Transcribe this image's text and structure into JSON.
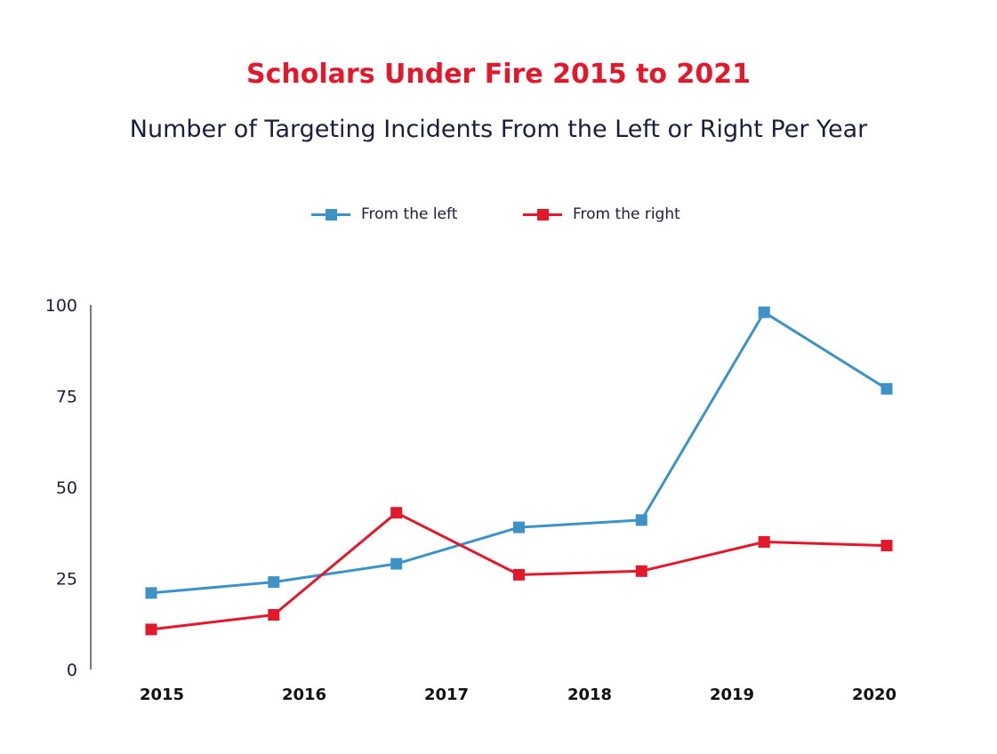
{
  "chart_data": {
    "type": "line",
    "title": "Scholars Under Fire 2015 to 2021",
    "subtitle": "Number of Targeting Incidents  From the Left or Right Per Year",
    "categories": [
      "2015",
      "2016",
      "2017",
      "2018",
      "2019",
      "2020"
    ],
    "x": [
      2015,
      2015.875,
      2016.75,
      2017.625,
      2018.5,
      2019.375,
      2020.25
    ],
    "series": [
      {
        "name": "From the left",
        "color": "#3d93c6",
        "values": [
          21,
          24,
          29,
          39,
          41,
          98,
          77
        ]
      },
      {
        "name": "From the right",
        "color": "#e3182d",
        "values": [
          11,
          15,
          43,
          26,
          27,
          35,
          34
        ]
      }
    ],
    "yticks": [
      0,
      25,
      50,
      75,
      100
    ],
    "ylim": [
      0,
      100
    ],
    "xlabel": "",
    "ylabel": "",
    "legend_position": "top-center",
    "grid": false
  }
}
